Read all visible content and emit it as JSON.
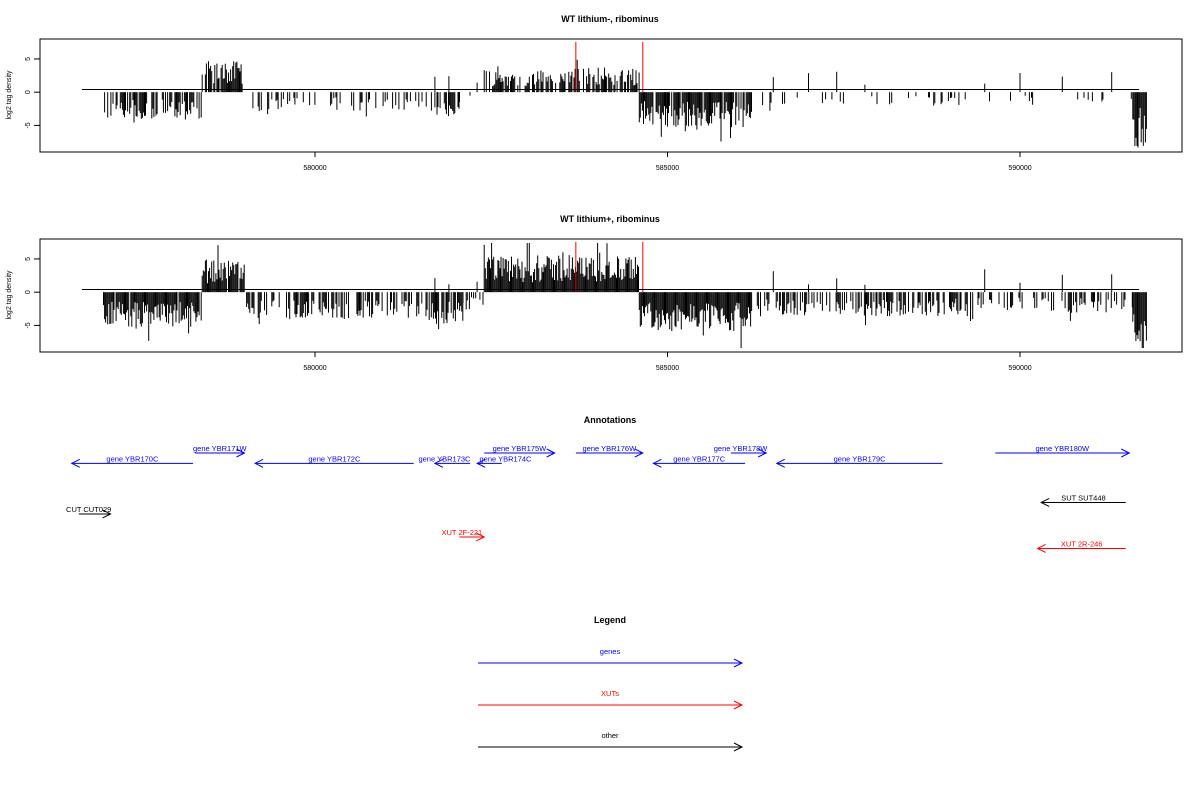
{
  "chart_data": [
    {
      "type": "bar",
      "title": "WT lithium-, ribominus",
      "ylabel": "log2 tag density",
      "xlim": [
        577000,
        592000
      ],
      "ylim": [
        -9,
        8
      ],
      "y_ticks": [
        -5,
        0,
        5
      ],
      "x_ticks": [
        580000,
        585000,
        590000
      ],
      "x_tick_labels": [
        "580000",
        "585000",
        "590000"
      ],
      "red_markers_x": [
        583700,
        584650
      ],
      "segments": [
        {
          "start": 577000,
          "end": 578400,
          "level": -3.2,
          "density": 0.55
        },
        {
          "start": 578400,
          "end": 579000,
          "level": 3.6,
          "density": 0.8
        },
        {
          "start": 579000,
          "end": 581700,
          "level": -2.2,
          "density": 0.3
        },
        {
          "start": 581700,
          "end": 582050,
          "level": -3.3,
          "density": 0.7
        },
        {
          "start": 582050,
          "end": 582400,
          "level": -1.2,
          "density": 0.2
        },
        {
          "start": 582400,
          "end": 583600,
          "level": 2.6,
          "density": 0.65
        },
        {
          "start": 583600,
          "end": 584600,
          "level": 2.9,
          "density": 0.65
        },
        {
          "start": 584600,
          "end": 585000,
          "level": -3.9,
          "density": 0.9
        },
        {
          "start": 585000,
          "end": 586200,
          "level": -4.1,
          "density": 0.9
        },
        {
          "start": 586200,
          "end": 589300,
          "level": -1.7,
          "density": 0.15
        },
        {
          "start": 589300,
          "end": 591600,
          "level": -1.1,
          "density": 0.06
        },
        {
          "start": 591600,
          "end": 591800,
          "level": -6.5,
          "density": 1.0
        }
      ]
    },
    {
      "type": "bar",
      "title": "WT lithium+, ribominus",
      "ylabel": "log2 tag density",
      "xlim": [
        577000,
        592000
      ],
      "ylim": [
        -9,
        8
      ],
      "y_ticks": [
        -5,
        0,
        5
      ],
      "x_ticks": [
        580000,
        585000,
        590000
      ],
      "x_tick_labels": [
        "580000",
        "585000",
        "590000"
      ],
      "red_markers_x": [
        583700,
        584650
      ],
      "segments": [
        {
          "start": 577000,
          "end": 578400,
          "level": -4.0,
          "density": 0.95
        },
        {
          "start": 578400,
          "end": 579000,
          "level": 3.8,
          "density": 0.95
        },
        {
          "start": 579000,
          "end": 581500,
          "level": -3.0,
          "density": 0.55
        },
        {
          "start": 581500,
          "end": 582100,
          "level": -4.0,
          "density": 0.8
        },
        {
          "start": 582100,
          "end": 582400,
          "level": -2.0,
          "density": 0.4
        },
        {
          "start": 582400,
          "end": 584600,
          "level": 4.2,
          "density": 1.0
        },
        {
          "start": 584600,
          "end": 586200,
          "level": -4.5,
          "density": 1.0
        },
        {
          "start": 586200,
          "end": 589300,
          "level": -2.8,
          "density": 0.5
        },
        {
          "start": 589300,
          "end": 591600,
          "level": -2.4,
          "density": 0.35
        },
        {
          "start": 591600,
          "end": 591800,
          "level": -6.2,
          "density": 1.0
        }
      ]
    }
  ],
  "annotations": {
    "title": "Annotations",
    "xlim": [
      577000,
      592000
    ],
    "features": [
      {
        "label": "gene YBR170C",
        "start": 578270,
        "end": 576550,
        "row": 0.9,
        "color": "#0000ff"
      },
      {
        "label": "gene YBR171W",
        "start": 578300,
        "end": 579000,
        "row": 0,
        "color": "#0000ff"
      },
      {
        "label": "gene YBR172C",
        "start": 581400,
        "end": 579150,
        "row": 0.9,
        "color": "#0000ff"
      },
      {
        "label": "gene YBR173C",
        "start": 582200,
        "end": 581700,
        "row": 0.9,
        "color": "#0000ff",
        "label_dx": -8
      },
      {
        "label": "gene YBR174C",
        "start": 582650,
        "end": 582300,
        "row": 0.9,
        "color": "#0000ff",
        "label_dx": 16
      },
      {
        "label": "gene YBR175W",
        "start": 582400,
        "end": 583400,
        "row": 0,
        "color": "#0000ff"
      },
      {
        "label": "gene YBR176W",
        "start": 583700,
        "end": 584650,
        "row": 0,
        "color": "#0000ff"
      },
      {
        "label": "gene YBR177C",
        "start": 586100,
        "end": 584800,
        "row": 0.9,
        "color": "#0000ff"
      },
      {
        "label": "gene YBR178W",
        "start": 585900,
        "end": 586400,
        "row": 0,
        "color": "#0000ff",
        "label_dx": -8
      },
      {
        "label": "gene YBR179C",
        "start": 588900,
        "end": 586550,
        "row": 0.9,
        "color": "#0000ff"
      },
      {
        "label": "gene YBR180W",
        "start": 589650,
        "end": 591550,
        "row": 0,
        "color": "#0000ff"
      },
      {
        "label": "CUT CUT029",
        "start": 576650,
        "end": 577100,
        "row": 5.3,
        "color": "#000000",
        "label_dx": -6
      },
      {
        "label": "SUT SUT448",
        "start": 591500,
        "end": 590300,
        "row": 4.3,
        "color": "#000000"
      },
      {
        "label": "XUT 2F-221",
        "start": 582050,
        "end": 582400,
        "row": 7.3,
        "color": "#ff0000",
        "label_dx": -10
      },
      {
        "label": "XUT 2R-246",
        "start": 591500,
        "end": 590250,
        "row": 8.3,
        "color": "#ff0000"
      }
    ]
  },
  "legend": {
    "title": "Legend",
    "items": [
      {
        "label": "genes",
        "color": "#0000ff"
      },
      {
        "label": "XUTs",
        "color": "#ff0000"
      },
      {
        "label": "other",
        "color": "#000000"
      }
    ]
  }
}
